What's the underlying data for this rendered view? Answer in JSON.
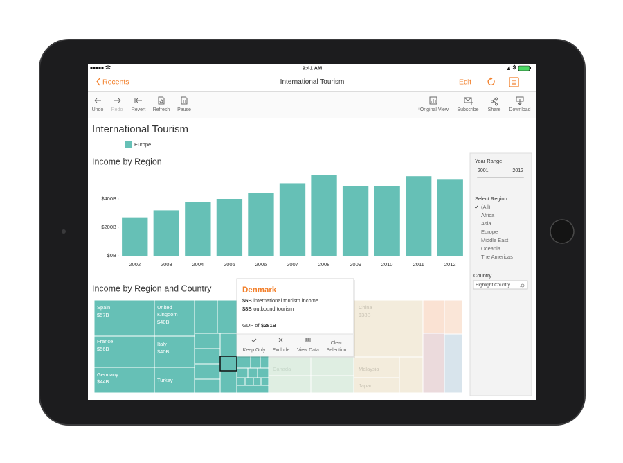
{
  "status_bar": {
    "time": "9:41 AM"
  },
  "nav": {
    "back": "Recents",
    "title": "International Tourism",
    "edit": "Edit"
  },
  "toolbar": {
    "left": [
      "Undo",
      "Redo",
      "Revert",
      "Refresh",
      "Pause"
    ],
    "right": [
      "*Original View",
      "Subscribe",
      "Share",
      "Download"
    ]
  },
  "dashboard": {
    "title": "International Tourism",
    "legend": "Europe"
  },
  "chart_data": {
    "type": "bar",
    "title": "Income by Region",
    "categories": [
      "2002",
      "2003",
      "2004",
      "2005",
      "2006",
      "2007",
      "2008",
      "2009",
      "2010",
      "2011",
      "2012"
    ],
    "values": [
      270,
      320,
      380,
      400,
      440,
      510,
      570,
      490,
      490,
      560,
      540
    ],
    "color": "#66c0b6",
    "ylim": [
      0,
      600
    ],
    "yticks": [
      {
        "value": 0,
        "label": "$0B"
      },
      {
        "value": 200,
        "label": "$200B"
      },
      {
        "value": 400,
        "label": "$400B"
      }
    ],
    "grid": false
  },
  "treemap": {
    "title": "Income by Region and Country",
    "cells": [
      {
        "label": "Spain",
        "value": "$57B"
      },
      {
        "label": "United",
        "label2": "Kingdom",
        "value": "$40B"
      },
      {
        "label": "France",
        "value": "$56B"
      },
      {
        "label": "Italy",
        "value": "$40B"
      },
      {
        "label": "Germany",
        "value": "$44B"
      },
      {
        "label": "Turkey"
      }
    ],
    "faded": [
      {
        "label": "China",
        "value": "$38B"
      },
      {
        "label": "Malaysia"
      },
      {
        "label": "Japan"
      },
      {
        "label": "Canada"
      }
    ]
  },
  "tooltip": {
    "title": "Denmark",
    "lines": [
      {
        "value": "$6B",
        "text": "international tourism income"
      },
      {
        "value": "$8B",
        "text": "outbound tourism"
      }
    ],
    "gdp": {
      "text": "GDP of",
      "value": "$281B"
    },
    "actions": [
      "Keep Only",
      "Exclude",
      "View Data"
    ],
    "clear": [
      "Clear",
      "Selection"
    ]
  },
  "filters": {
    "year_range": {
      "title": "Year Range",
      "from": "2001",
      "to": "2012"
    },
    "region": {
      "title": "Select Region",
      "options": [
        "(All)",
        "Africa",
        "Asia",
        "Europe",
        "Middle East",
        "Oceania",
        "The Americas"
      ]
    },
    "country": {
      "title": "Country",
      "placeholder": "Highlight Country"
    }
  }
}
